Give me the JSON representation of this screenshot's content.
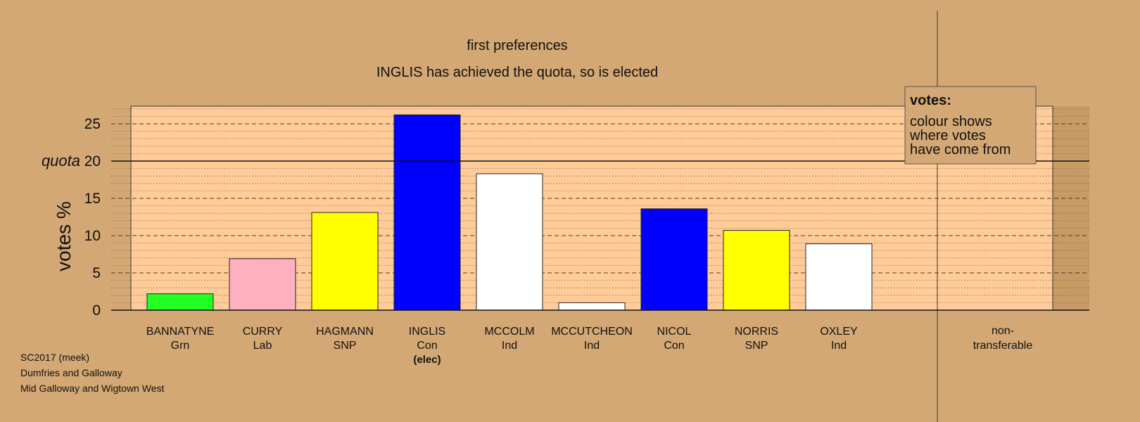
{
  "chart_data": {
    "type": "bar",
    "title": "first preferences",
    "subtitle": "INGLIS has achieved the quota, so is elected",
    "ylabel": "votes %",
    "ylim": [
      0,
      27
    ],
    "yticks": [
      0,
      5,
      10,
      15,
      20,
      25
    ],
    "quota": 20,
    "quota_label": "quota",
    "categories": [
      {
        "name": "BANNATYNE",
        "party": "Grn",
        "value": 2.2,
        "color": "#22ff22",
        "note": ""
      },
      {
        "name": "CURRY",
        "party": "Lab",
        "value": 6.9,
        "color": "#ffb0c0",
        "note": ""
      },
      {
        "name": "HAGMANN",
        "party": "SNP",
        "value": 13.1,
        "color": "#ffff00",
        "note": ""
      },
      {
        "name": "INGLIS",
        "party": "Con",
        "value": 26.2,
        "color": "#0000ff",
        "note": "(elec)"
      },
      {
        "name": "MCCOLM",
        "party": "Ind",
        "value": 18.3,
        "color": "#ffffff",
        "note": ""
      },
      {
        "name": "MCCUTCHEON",
        "party": "Ind",
        "value": 1.0,
        "color": "#ffffff",
        "note": ""
      },
      {
        "name": "NICOL",
        "party": "Con",
        "value": 13.6,
        "color": "#0000ff",
        "note": ""
      },
      {
        "name": "NORRIS",
        "party": "SNP",
        "value": 10.7,
        "color": "#ffff00",
        "note": ""
      },
      {
        "name": "OXLEY",
        "party": "Ind",
        "value": 8.9,
        "color": "#ffffff",
        "note": ""
      }
    ],
    "nontransferable": {
      "line1": "non-",
      "line2": "transferable",
      "value": 0
    },
    "legend": {
      "title": "votes:",
      "lines": [
        "colour shows",
        "where votes",
        "have come from"
      ],
      "placement": "top-right"
    },
    "grid": true
  },
  "footer": {
    "line1": "SC2017 (meek)",
    "line2": "Dumfries and Galloway",
    "line3": "Mid Galloway and Wigtown West"
  },
  "colors": {
    "background": "#d4a874",
    "plot_background": "#ffcc99"
  }
}
